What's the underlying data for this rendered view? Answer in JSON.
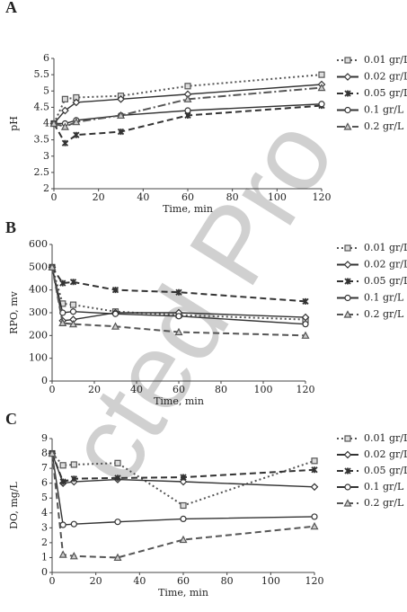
{
  "watermark": "cted Pro",
  "chart_data": [
    {
      "type": "line",
      "panel_label": "A",
      "x_label": "Time, min",
      "y_label": "pH",
      "x": [
        0,
        5,
        10,
        30,
        60,
        120
      ],
      "xlim": [
        0,
        120
      ],
      "xticks": [
        0,
        20,
        40,
        60,
        80,
        100,
        120
      ],
      "ylim": [
        2,
        6
      ],
      "yticks": [
        2,
        2.5,
        3,
        3.5,
        4,
        4.5,
        5,
        5.5,
        6
      ],
      "legend": "right",
      "series": [
        {
          "name": "0.01 gr/L",
          "color": "#555555",
          "dash": "dot",
          "marker": "square",
          "values": [
            4.0,
            4.75,
            4.8,
            4.85,
            5.15,
            5.5
          ]
        },
        {
          "name": "0.02 gr/L",
          "color": "#333333",
          "dash": "solid",
          "marker": "diamond",
          "values": [
            4.0,
            4.4,
            4.65,
            4.75,
            4.9,
            5.2
          ]
        },
        {
          "name": "0.05 gr/L",
          "color": "#333333",
          "dash": "dash",
          "marker": "star",
          "values": [
            4.0,
            3.4,
            3.65,
            3.75,
            4.25,
            4.55
          ]
        },
        {
          "name": "0.1 gr/L",
          "color": "#333333",
          "dash": "solid",
          "marker": "circle",
          "values": [
            4.0,
            4.0,
            4.1,
            4.25,
            4.4,
            4.6
          ]
        },
        {
          "name": "0.2 gr/L",
          "color": "#555555",
          "dash": "dashdot",
          "marker": "triangle",
          "values": [
            4.0,
            3.9,
            4.05,
            4.25,
            4.75,
            5.1
          ]
        }
      ]
    },
    {
      "type": "line",
      "panel_label": "B",
      "x_label": "Time, min",
      "y_label": "RPO, mv",
      "x": [
        0,
        5,
        10,
        30,
        60,
        120
      ],
      "xlim": [
        0,
        120
      ],
      "xticks": [
        0,
        20,
        40,
        60,
        80,
        100,
        120
      ],
      "ylim": [
        0,
        600
      ],
      "yticks": [
        0,
        100,
        200,
        300,
        400,
        500,
        600
      ],
      "legend": "right",
      "series": [
        {
          "name": "0.01 gr/L",
          "color": "#555555",
          "dash": "dot",
          "marker": "square",
          "values": [
            500,
            340,
            335,
            305,
            290,
            270
          ]
        },
        {
          "name": "0.02 gr/L",
          "color": "#333333",
          "dash": "solid",
          "marker": "diamond",
          "values": [
            500,
            265,
            270,
            300,
            300,
            280
          ]
        },
        {
          "name": "0.05 gr/L",
          "color": "#333333",
          "dash": "dash",
          "marker": "star",
          "values": [
            500,
            430,
            435,
            400,
            390,
            350
          ]
        },
        {
          "name": "0.1 gr/L",
          "color": "#333333",
          "dash": "solid",
          "marker": "circle",
          "values": [
            500,
            300,
            305,
            295,
            285,
            250
          ]
        },
        {
          "name": "0.2 gr/L",
          "color": "#555555",
          "dash": "dash",
          "marker": "triangle",
          "values": [
            500,
            255,
            250,
            240,
            215,
            200
          ]
        }
      ]
    },
    {
      "type": "line",
      "panel_label": "C",
      "x_label": "Time, min",
      "y_label": "DO, mg/L",
      "x": [
        0,
        5,
        10,
        30,
        60,
        120
      ],
      "xlim": [
        0,
        120
      ],
      "xticks": [
        0,
        20,
        40,
        60,
        80,
        100,
        120
      ],
      "ylim": [
        0,
        9
      ],
      "yticks": [
        0,
        1,
        2,
        3,
        4,
        5,
        6,
        7,
        8,
        9
      ],
      "legend": "right",
      "series": [
        {
          "name": "0.01 gr/L",
          "color": "#555555",
          "dash": "dot",
          "marker": "square",
          "values": [
            8,
            7.2,
            7.25,
            7.35,
            4.5,
            7.5
          ]
        },
        {
          "name": "0.02 gr/L",
          "color": "#333333",
          "dash": "solid",
          "marker": "diamond",
          "values": [
            8,
            6.0,
            6.1,
            6.25,
            6.1,
            5.75
          ]
        },
        {
          "name": "0.05 gr/L",
          "color": "#333333",
          "dash": "dash",
          "marker": "star",
          "values": [
            8,
            6.1,
            6.3,
            6.35,
            6.4,
            6.9
          ]
        },
        {
          "name": "0.1 gr/L",
          "color": "#333333",
          "dash": "solid",
          "marker": "circle",
          "values": [
            8,
            3.2,
            3.25,
            3.4,
            3.6,
            3.75
          ]
        },
        {
          "name": "0.2 gr/L",
          "color": "#555555",
          "dash": "dash",
          "marker": "triangle",
          "values": [
            8,
            1.2,
            1.1,
            1.0,
            2.2,
            3.1
          ]
        }
      ]
    }
  ]
}
